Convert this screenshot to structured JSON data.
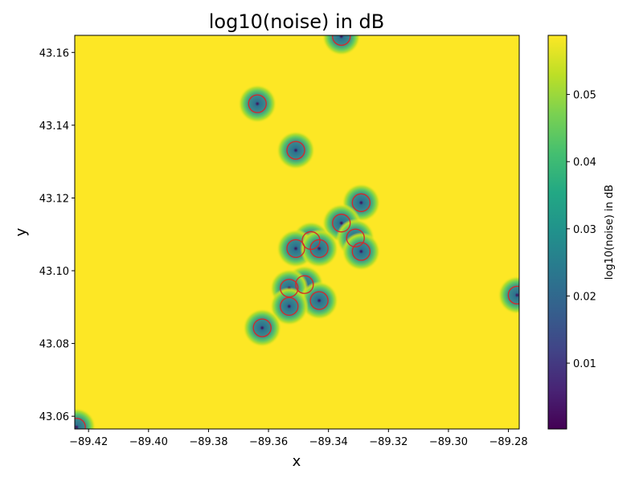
{
  "chart_data": {
    "type": "heatmap",
    "title": "log10(noise) in dB",
    "xlabel": "x",
    "ylabel": "y",
    "xlim": [
      -89.4246,
      -89.2764
    ],
    "ylim": [
      43.0565,
      43.1647
    ],
    "xticks": [
      -89.42,
      -89.4,
      -89.38,
      -89.36,
      -89.34,
      -89.32,
      -89.3,
      -89.28
    ],
    "xtick_labels": [
      "−89.42",
      "−89.40",
      "−89.38",
      "−89.36",
      "−89.34",
      "−89.32",
      "−89.30",
      "−89.28"
    ],
    "yticks": [
      43.06,
      43.08,
      43.1,
      43.12,
      43.14,
      43.16
    ],
    "ytick_labels": [
      "43.06",
      "43.08",
      "43.10",
      "43.12",
      "43.14",
      "43.16"
    ],
    "colorbar": {
      "label": "log10(noise) in dB",
      "range": [
        0.0002,
        0.0588
      ],
      "ticks": [
        0.01,
        0.02,
        0.03,
        0.04,
        0.05
      ],
      "tick_labels": [
        "0.01",
        "0.02",
        "0.03",
        "0.04",
        "0.05"
      ],
      "colormap": "viridis"
    },
    "background_value": 0.0588,
    "sources": [
      {
        "x": -89.3357,
        "y": 43.1644
      },
      {
        "x": -89.3637,
        "y": 43.1459
      },
      {
        "x": -89.3509,
        "y": 43.1331
      },
      {
        "x": -89.3291,
        "y": 43.1187
      },
      {
        "x": -89.3357,
        "y": 43.1131
      },
      {
        "x": -89.331,
        "y": 43.109
      },
      {
        "x": -89.3458,
        "y": 43.1083
      },
      {
        "x": -89.3509,
        "y": 43.1061
      },
      {
        "x": -89.3431,
        "y": 43.1061
      },
      {
        "x": -89.3291,
        "y": 43.1053
      },
      {
        "x": -89.348,
        "y": 43.0962
      },
      {
        "x": -89.3531,
        "y": 43.0952
      },
      {
        "x": -89.3431,
        "y": 43.0918
      },
      {
        "x": -89.3531,
        "y": 43.0902
      },
      {
        "x": -89.3621,
        "y": 43.0843
      },
      {
        "x": -89.2771,
        "y": 43.0933
      },
      {
        "x": -89.424,
        "y": 43.057
      }
    ],
    "marker_color": "#d62728",
    "grid": false
  }
}
